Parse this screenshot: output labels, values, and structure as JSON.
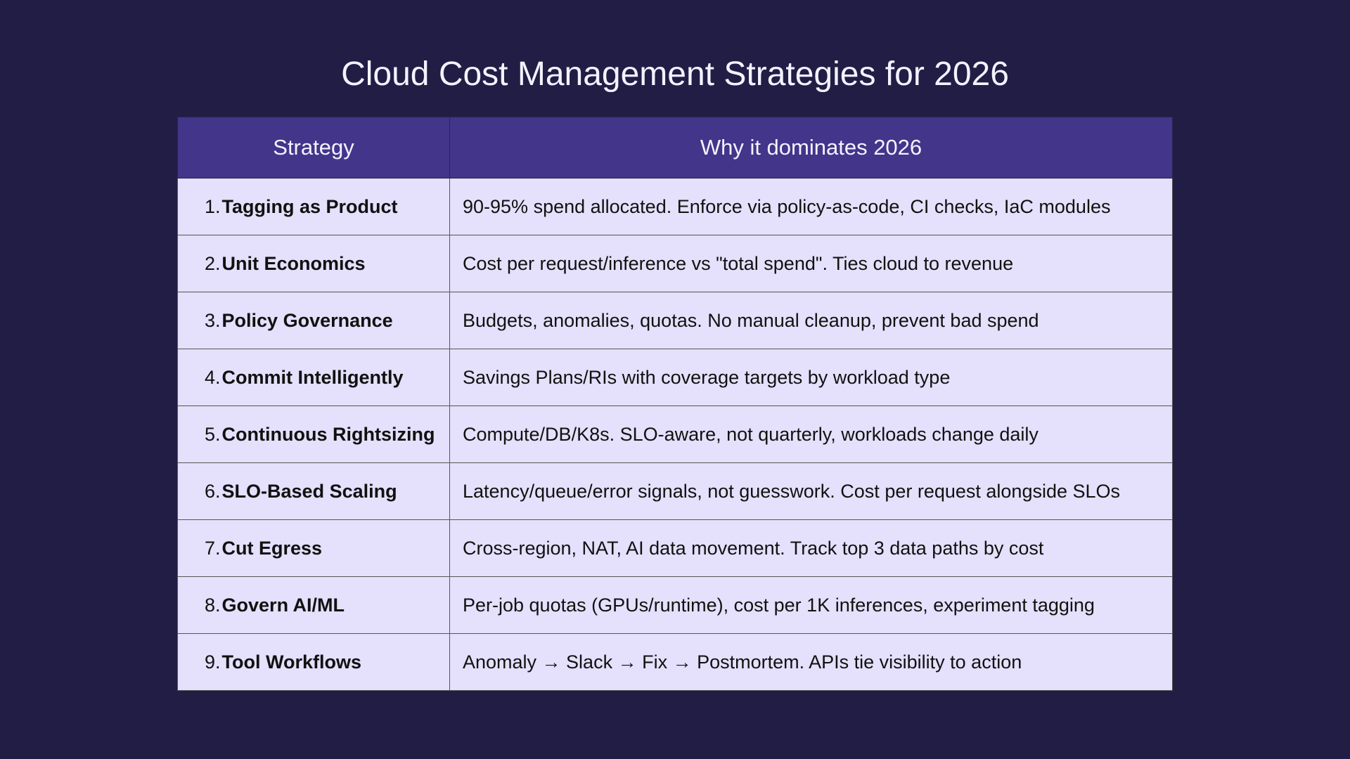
{
  "title": "Cloud Cost Management Strategies for 2026",
  "table": {
    "header": [
      "Strategy",
      "Why it dominates 2026"
    ],
    "rows": [
      {
        "number": "1.",
        "strategy": "Tagging as Product",
        "reason": "90-95% spend allocated. Enforce via policy-as-code, CI checks, IaC modules"
      },
      {
        "number": "2.",
        "strategy": "Unit Economics",
        "reason": "Cost per request/inference vs \"total spend\". Ties cloud to revenue"
      },
      {
        "number": "3.",
        "strategy": "Policy Governance",
        "reason": "Budgets, anomalies, quotas. No manual cleanup, prevent bad spend"
      },
      {
        "number": "4.",
        "strategy": "Commit Intelligently",
        "reason": "Savings Plans/RIs with coverage targets by workload type"
      },
      {
        "number": "5.",
        "strategy": "Continuous Rightsizing",
        "reason": "Compute/DB/K8s. SLO-aware, not quarterly, workloads change daily"
      },
      {
        "number": "6.",
        "strategy": "SLO-Based Scaling",
        "reason": "Latency/queue/error signals, not guesswork. Cost per request alongside SLOs"
      },
      {
        "number": "7.",
        "strategy": "Cut Egress",
        "reason": "Cross-region, NAT, AI data movement. Track top 3 data paths by cost"
      },
      {
        "number": "8.",
        "strategy": "Govern AI/ML",
        "reason": "Per-job quotas (GPUs/runtime), cost per 1K inferences, experiment tagging"
      },
      {
        "number": "9.",
        "strategy": "Tool Workflows",
        "reason": "Anomaly → Slack → Fix → Postmortem. APIs tie visibility to action"
      }
    ]
  }
}
